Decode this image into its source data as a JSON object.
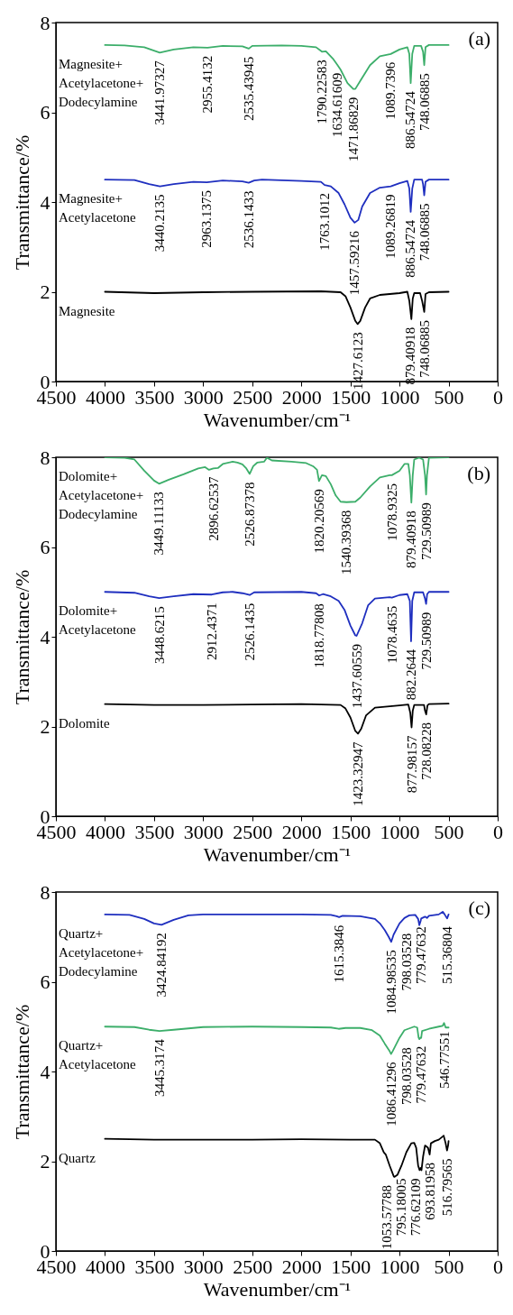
{
  "chart_data": [
    {
      "type": "line",
      "xlabel": "Wavenumber/cm⁻¹",
      "ylabel": "Transmittance/%",
      "xlim": [
        4500,
        0
      ],
      "xticks": [
        4500,
        4000,
        3500,
        3000,
        2500,
        2000,
        1500,
        1000,
        500,
        0
      ],
      "ylim": [
        0,
        8
      ],
      "yticks": [
        0,
        2,
        4,
        6,
        8
      ],
      "annotations": [
        "(a)",
        {
          "text": "3441.97327",
          "x": 3442,
          "y": 7.33
        },
        {
          "text": "2955.4132",
          "x": 2955,
          "y": 7.44
        },
        {
          "text": "2535.43945",
          "x": 2535,
          "y": 7.42
        },
        {
          "text": "1790.22583",
          "x": 1790,
          "y": 7.35
        },
        {
          "text": "1634.61609",
          "x": 1634,
          "y": 7.06
        },
        {
          "text": "1471.86829",
          "x": 1471,
          "y": 6.52
        },
        {
          "text": "1089.7396",
          "x": 1089,
          "y": 7.3
        },
        {
          "text": "886.54724",
          "x": 886,
          "y": 6.65
        },
        {
          "text": "748.06885",
          "x": 748,
          "y": 7.05
        },
        {
          "text": "3440.2135",
          "x": 3440,
          "y": 4.35
        },
        {
          "text": "2963.1375",
          "x": 2963,
          "y": 4.44
        },
        {
          "text": "2536.1433",
          "x": 2536,
          "y": 4.43
        },
        {
          "text": "1763.1012",
          "x": 1763,
          "y": 4.38
        },
        {
          "text": "1457.59216",
          "x": 1457,
          "y": 3.54
        },
        {
          "text": "1089.26819",
          "x": 1089,
          "y": 4.35
        },
        {
          "text": "886.54724",
          "x": 886,
          "y": 3.78
        },
        {
          "text": "748.06885",
          "x": 748,
          "y": 4.15
        },
        {
          "text": "1427.6123",
          "x": 1427,
          "y": 1.28
        },
        {
          "text": "879.40918",
          "x": 879,
          "y": 1.39
        },
        {
          "text": "748.06885",
          "x": 748,
          "y": 1.55
        }
      ],
      "series": [
        {
          "name": "Magnesite+ Acetylacetone+ Dodecylamine",
          "color": "#3cae6a",
          "x": [
            4000,
            3800,
            3600,
            3442,
            3300,
            3100,
            2955,
            2800,
            2600,
            2535,
            2500,
            2200,
            2000,
            1850,
            1790,
            1750,
            1680,
            1634,
            1600,
            1530,
            1471,
            1450,
            1400,
            1300,
            1200,
            1089,
            1000,
            920,
            900,
            886,
            870,
            850,
            780,
            760,
            748,
            735,
            700,
            600,
            500
          ],
          "values": [
            7.5,
            7.49,
            7.45,
            7.33,
            7.4,
            7.45,
            7.44,
            7.48,
            7.47,
            7.42,
            7.48,
            7.49,
            7.48,
            7.45,
            7.35,
            7.36,
            7.2,
            7.06,
            6.95,
            6.65,
            6.52,
            6.52,
            6.7,
            7.05,
            7.25,
            7.3,
            7.4,
            7.45,
            7.3,
            6.65,
            7.3,
            7.48,
            7.48,
            7.35,
            7.05,
            7.45,
            7.5,
            7.5,
            7.5
          ]
        },
        {
          "name": "Magnesite+ Acetylacetone",
          "color": "#1f2fbf",
          "x": [
            4000,
            3700,
            3550,
            3440,
            3300,
            3100,
            2963,
            2800,
            2600,
            2536,
            2480,
            2400,
            2000,
            1800,
            1763,
            1700,
            1620,
            1560,
            1500,
            1457,
            1420,
            1380,
            1300,
            1200,
            1089,
            1000,
            920,
            900,
            886,
            870,
            850,
            770,
            760,
            748,
            735,
            700,
            500
          ],
          "values": [
            4.5,
            4.49,
            4.4,
            4.35,
            4.4,
            4.45,
            4.44,
            4.48,
            4.46,
            4.43,
            4.48,
            4.5,
            4.47,
            4.45,
            4.38,
            4.35,
            4.2,
            3.95,
            3.65,
            3.54,
            3.6,
            3.9,
            4.2,
            4.32,
            4.35,
            4.42,
            4.47,
            4.3,
            3.78,
            4.3,
            4.5,
            4.5,
            4.4,
            4.15,
            4.45,
            4.5,
            4.5
          ]
        },
        {
          "name": "Magnesite",
          "color": "#000000",
          "x": [
            4000,
            3500,
            3000,
            2500,
            1800,
            1600,
            1550,
            1500,
            1450,
            1427,
            1400,
            1350,
            1300,
            1200,
            1000,
            920,
            900,
            879,
            865,
            850,
            790,
            770,
            748,
            735,
            700,
            500
          ],
          "values": [
            2.0,
            1.97,
            1.99,
            2.0,
            2.01,
            1.99,
            1.9,
            1.65,
            1.35,
            1.28,
            1.35,
            1.65,
            1.85,
            1.93,
            1.97,
            2.0,
            1.8,
            1.39,
            1.85,
            1.97,
            1.97,
            1.8,
            1.55,
            1.95,
            1.99,
            2.0
          ]
        }
      ]
    },
    {
      "type": "line",
      "xlabel": "Wavenumber/cm⁻¹",
      "ylabel": "Transmittance/%",
      "xlim": [
        4500,
        0
      ],
      "xticks": [
        4500,
        4000,
        3500,
        3000,
        2500,
        2000,
        1500,
        1000,
        500,
        0
      ],
      "ylim": [
        0,
        8
      ],
      "yticks": [
        0,
        2,
        4,
        6,
        8
      ],
      "annotations": [
        "(b)",
        {
          "text": "3449.11133",
          "x": 3449,
          "y": 7.41
        },
        {
          "text": "2896.62537",
          "x": 2896,
          "y": 7.75
        },
        {
          "text": "2526.87378",
          "x": 2526,
          "y": 7.63
        },
        {
          "text": "1820.20569",
          "x": 1820,
          "y": 7.47
        },
        {
          "text": "1540.39368",
          "x": 1540,
          "y": 7.0
        },
        {
          "text": "1078.9325",
          "x": 1078,
          "y": 7.6
        },
        {
          "text": "879.40918",
          "x": 879,
          "y": 6.99
        },
        {
          "text": "729.50989",
          "x": 729,
          "y": 7.17
        },
        {
          "text": "3448.6215",
          "x": 3448,
          "y": 4.86
        },
        {
          "text": "2912.4371",
          "x": 2912,
          "y": 4.94
        },
        {
          "text": "2526.1435",
          "x": 2526,
          "y": 4.93
        },
        {
          "text": "1818.77808",
          "x": 1818,
          "y": 4.92
        },
        {
          "text": "1437.60559",
          "x": 1437,
          "y": 4.02
        },
        {
          "text": "1078.4635",
          "x": 1078,
          "y": 4.87
        },
        {
          "text": "882.2644",
          "x": 882,
          "y": 3.9
        },
        {
          "text": "729.50989",
          "x": 729,
          "y": 4.73
        },
        {
          "text": "1423.32947",
          "x": 1423,
          "y": 1.84
        },
        {
          "text": "877.98157",
          "x": 877,
          "y": 1.98
        },
        {
          "text": "728.08228",
          "x": 728,
          "y": 2.27
        }
      ],
      "series": [
        {
          "name": "Dolomite+ Acetylacetone+ Dodecylamine",
          "color": "#3cae6a",
          "x": [
            4000,
            3800,
            3700,
            3600,
            3500,
            3449,
            3350,
            3200,
            3050,
            2980,
            2940,
            2896,
            2850,
            2800,
            2700,
            2650,
            2600,
            2560,
            2526,
            2490,
            2450,
            2380,
            2350,
            2300,
            2100,
            1950,
            1880,
            1840,
            1820,
            1790,
            1750,
            1700,
            1650,
            1600,
            1540,
            1450,
            1400,
            1300,
            1200,
            1100,
            1078,
            1000,
            950,
            910,
            895,
            879,
            865,
            850,
            800,
            760,
            740,
            729,
            720,
            700,
            500
          ],
          "values": [
            8.0,
            7.99,
            7.95,
            7.7,
            7.48,
            7.41,
            7.5,
            7.62,
            7.75,
            7.78,
            7.72,
            7.75,
            7.76,
            7.85,
            7.9,
            7.88,
            7.84,
            7.75,
            7.63,
            7.8,
            7.88,
            7.9,
            7.99,
            7.93,
            7.9,
            7.87,
            7.8,
            7.72,
            7.47,
            7.6,
            7.58,
            7.4,
            7.15,
            7.01,
            7.0,
            7.01,
            7.1,
            7.35,
            7.55,
            7.6,
            7.6,
            7.7,
            7.85,
            7.85,
            7.6,
            6.99,
            7.6,
            7.95,
            7.99,
            7.95,
            7.6,
            7.17,
            7.6,
            7.99,
            8.0
          ]
        },
        {
          "name": "Dolomite+ Acetylacetone",
          "color": "#1f2fbf",
          "x": [
            4000,
            3700,
            3550,
            3448,
            3300,
            3100,
            2912,
            2800,
            2700,
            2600,
            2526,
            2480,
            2000,
            1850,
            1818,
            1780,
            1700,
            1620,
            1560,
            1500,
            1450,
            1437,
            1380,
            1320,
            1250,
            1100,
            1078,
            1000,
            920,
            895,
            882,
            870,
            850,
            760,
            740,
            729,
            718,
            700,
            500
          ],
          "values": [
            5.0,
            4.98,
            4.9,
            4.86,
            4.9,
            4.95,
            4.94,
            4.99,
            5.0,
            4.97,
            4.93,
            4.99,
            5.0,
            4.97,
            4.92,
            4.95,
            4.9,
            4.8,
            4.6,
            4.25,
            4.03,
            4.02,
            4.3,
            4.7,
            4.85,
            4.88,
            4.87,
            4.93,
            4.95,
            4.8,
            3.9,
            4.8,
            4.99,
            4.99,
            4.85,
            4.73,
            4.95,
            5.0,
            5.0
          ]
        },
        {
          "name": "Dolomite",
          "color": "#000000",
          "x": [
            4000,
            3500,
            3000,
            2500,
            2000,
            1600,
            1550,
            1500,
            1450,
            1423,
            1390,
            1340,
            1250,
            1000,
            910,
            890,
            877,
            865,
            850,
            750,
            740,
            728,
            715,
            700,
            500
          ],
          "values": [
            2.5,
            2.48,
            2.48,
            2.49,
            2.5,
            2.48,
            2.4,
            2.2,
            1.9,
            1.84,
            1.95,
            2.25,
            2.42,
            2.47,
            2.49,
            2.3,
            1.98,
            2.35,
            2.48,
            2.48,
            2.35,
            2.27,
            2.47,
            2.5,
            2.51
          ]
        }
      ]
    },
    {
      "type": "line",
      "xlabel": "Wavenumber/cm⁻¹",
      "ylabel": "Transmittance/%",
      "xlim": [
        4500,
        0
      ],
      "xticks": [
        4500,
        4000,
        3500,
        3000,
        2500,
        2000,
        1500,
        1000,
        500,
        0
      ],
      "ylim": [
        0,
        8
      ],
      "yticks": [
        0,
        2,
        4,
        6,
        8
      ],
      "annotations": [
        "(c)",
        {
          "text": "3424.84192",
          "x": 3424,
          "y": 7.27
        },
        {
          "text": "1615.3846",
          "x": 1615,
          "y": 7.44
        },
        {
          "text": "1084.98535",
          "x": 1084,
          "y": 6.89
        },
        {
          "text": "798.03528",
          "x": 798,
          "y": 7.26
        },
        {
          "text": "779.47632",
          "x": 779,
          "y": 7.41
        },
        {
          "text": "515.36804",
          "x": 515,
          "y": 7.41
        },
        {
          "text": "3445.3174",
          "x": 3445,
          "y": 4.9
        },
        {
          "text": "1086.41296",
          "x": 1086,
          "y": 4.39
        },
        {
          "text": "798.03528",
          "x": 798,
          "y": 4.72
        },
        {
          "text": "779.47632",
          "x": 779,
          "y": 4.75
        },
        {
          "text": "546.77551",
          "x": 546,
          "y": 5.08
        },
        {
          "text": "1053.57788",
          "x": 1053,
          "y": 1.65
        },
        {
          "text": "795.18005",
          "x": 795,
          "y": 1.8
        },
        {
          "text": "776.62109",
          "x": 776,
          "y": 1.8
        },
        {
          "text": "693.81958",
          "x": 693,
          "y": 2.15
        },
        {
          "text": "516.79565",
          "x": 516,
          "y": 2.24
        }
      ],
      "series": [
        {
          "name": "Quartz+ Acetylacetone+ Dodecylamine",
          "color": "#1f2fbf",
          "x": [
            4000,
            3750,
            3600,
            3500,
            3424,
            3300,
            3150,
            3000,
            2000,
            1700,
            1640,
            1615,
            1580,
            1400,
            1250,
            1200,
            1150,
            1110,
            1084,
            1060,
            1000,
            950,
            900,
            840,
            810,
            798,
            785,
            779,
            740,
            720,
            700,
            600,
            560,
            540,
            515,
            500
          ],
          "values": [
            7.5,
            7.49,
            7.4,
            7.3,
            7.27,
            7.38,
            7.48,
            7.5,
            7.5,
            7.49,
            7.46,
            7.44,
            7.47,
            7.46,
            7.4,
            7.3,
            7.15,
            7.0,
            6.89,
            7.05,
            7.3,
            7.42,
            7.48,
            7.49,
            7.4,
            7.26,
            7.35,
            7.41,
            7.45,
            7.42,
            7.47,
            7.5,
            7.56,
            7.5,
            7.41,
            7.5
          ]
        },
        {
          "name": "Quartz+ Acetylacetone",
          "color": "#3cae6a",
          "x": [
            4000,
            3700,
            3550,
            3445,
            3300,
            3000,
            2500,
            2000,
            1700,
            1620,
            1550,
            1400,
            1280,
            1200,
            1150,
            1100,
            1086,
            1070,
            1000,
            950,
            850,
            820,
            805,
            798,
            785,
            779,
            770,
            700,
            600,
            560,
            546,
            530,
            500
          ],
          "values": [
            5.0,
            4.99,
            4.93,
            4.9,
            4.93,
            4.99,
            5.0,
            4.99,
            4.98,
            4.95,
            4.97,
            4.97,
            4.92,
            4.8,
            4.62,
            4.45,
            4.39,
            4.45,
            4.75,
            4.92,
            5.0,
            4.98,
            4.75,
            4.72,
            4.76,
            4.75,
            4.9,
            4.95,
            5.0,
            5.02,
            5.08,
            4.98,
            4.98
          ]
        },
        {
          "name": "Quartz",
          "color": "#000000",
          "x": [
            4000,
            3500,
            3000,
            2500,
            2000,
            1500,
            1250,
            1200,
            1160,
            1140,
            1100,
            1060,
            1053,
            1020,
            980,
            930,
            880,
            850,
            830,
            810,
            795,
            785,
            776,
            760,
            740,
            710,
            693,
            680,
            640,
            600,
            560,
            550,
            530,
            516,
            505,
            500
          ],
          "values": [
            2.5,
            2.48,
            2.48,
            2.48,
            2.49,
            2.48,
            2.48,
            2.4,
            2.2,
            2.15,
            1.9,
            1.67,
            1.65,
            1.7,
            1.9,
            2.2,
            2.4,
            2.41,
            2.3,
            1.9,
            1.8,
            1.85,
            1.8,
            2.1,
            2.35,
            2.3,
            2.15,
            2.4,
            2.45,
            2.48,
            2.55,
            2.57,
            2.4,
            2.24,
            2.35,
            2.45
          ]
        }
      ]
    }
  ]
}
